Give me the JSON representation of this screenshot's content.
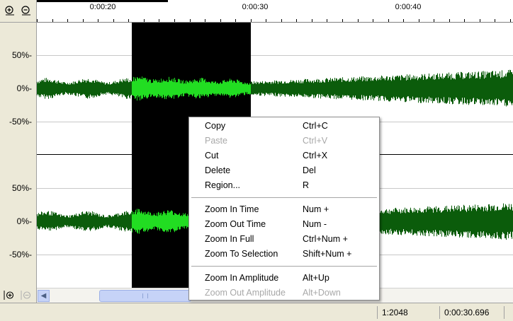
{
  "ruler": {
    "ticks": [
      {
        "label": "0:00:20"
      },
      {
        "label": "0:00:30"
      },
      {
        "label": "0:00:40"
      }
    ]
  },
  "channels": [
    {
      "labels": [
        "50%-",
        "0%-",
        "-50%-"
      ]
    },
    {
      "labels": [
        "50%-",
        "0%-",
        "-50%-"
      ]
    }
  ],
  "colors": {
    "waveform": "#0b5c0b",
    "waveform_selected": "#22dd22",
    "selection_bg": "#000000"
  },
  "context_menu": {
    "groups": [
      [
        {
          "label": "Copy",
          "shortcut": "Ctrl+C",
          "enabled": true
        },
        {
          "label": "Paste",
          "shortcut": "Ctrl+V",
          "enabled": false
        },
        {
          "label": "Cut",
          "shortcut": "Ctrl+X",
          "enabled": true
        },
        {
          "label": "Delete",
          "shortcut": "Del",
          "enabled": true
        },
        {
          "label": "Region...",
          "shortcut": "R",
          "enabled": true
        }
      ],
      [
        {
          "label": "Zoom In Time",
          "shortcut": "Num +",
          "enabled": true
        },
        {
          "label": "Zoom Out Time",
          "shortcut": "Num -",
          "enabled": true
        },
        {
          "label": "Zoom In Full",
          "shortcut": "Ctrl+Num +",
          "enabled": true
        },
        {
          "label": "Zoom To Selection",
          "shortcut": "Shift+Num +",
          "enabled": true
        }
      ],
      [
        {
          "label": "Zoom In Amplitude",
          "shortcut": "Alt+Up",
          "enabled": true
        },
        {
          "label": "Zoom Out Amplitude",
          "shortcut": "Alt+Down",
          "enabled": false
        }
      ]
    ]
  },
  "statusbar": {
    "zoom_ratio": "1:2048",
    "cursor_time": "0:00:30.696"
  }
}
